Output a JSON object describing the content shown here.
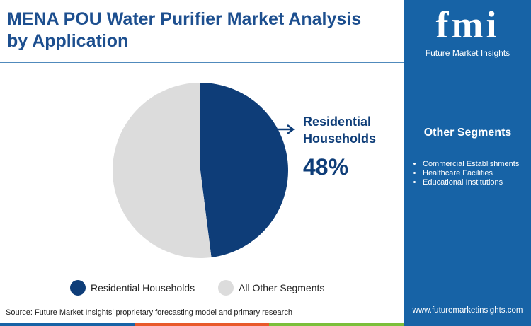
{
  "chart_data": {
    "type": "pie",
    "title": "MENA POU Water Purifier Market Analysis by Application",
    "categories": [
      "Residential Households",
      "All Other Segments"
    ],
    "values": [
      48,
      52
    ],
    "value_labels": [
      "48%",
      null
    ],
    "colors": [
      "#0e3d78",
      "#dcdcdc"
    ],
    "legend": "bottom"
  },
  "source": "Source: Future Market Insights’ proprietary forecasting model and primary research",
  "sidebar": {
    "logo": "fmi",
    "brand": "Future Market Insights",
    "heading": "Other Segments",
    "items": [
      "Commercial Establishments",
      "Healthcare Facilities",
      "Educational Institutions"
    ],
    "url": "www.futuremarketinsights.com"
  }
}
